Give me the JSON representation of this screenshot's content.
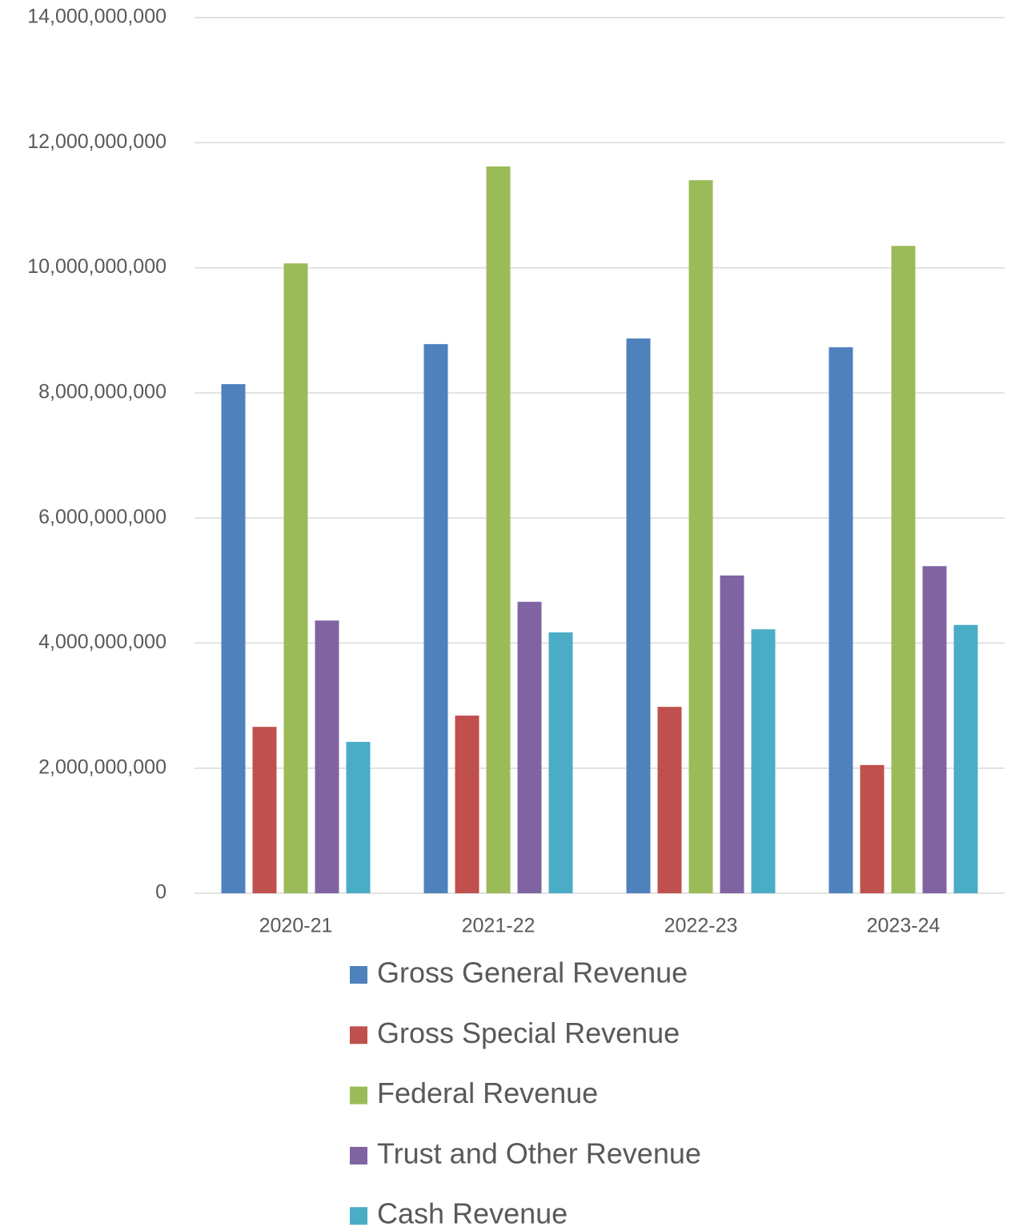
{
  "chart_data": {
    "type": "bar",
    "categories": [
      "2020-21",
      "2021-22",
      "2022-23",
      "2023-24"
    ],
    "series": [
      {
        "name": "Gross General Revenue",
        "color": "#4f81bd",
        "values": [
          8140000000,
          8780000000,
          8870000000,
          8730000000
        ]
      },
      {
        "name": "Gross Special Revenue",
        "color": "#c0504d",
        "values": [
          2660000000,
          2840000000,
          2980000000,
          2050000000
        ]
      },
      {
        "name": "Federal Revenue",
        "color": "#9bbb59",
        "values": [
          10070000000,
          11620000000,
          11400000000,
          10350000000
        ]
      },
      {
        "name": "Trust and Other Revenue",
        "color": "#8064a2",
        "values": [
          4360000000,
          4660000000,
          5080000000,
          5230000000
        ]
      },
      {
        "name": "Cash Revenue",
        "color": "#4bacc6",
        "values": [
          2420000000,
          4170000000,
          4220000000,
          4290000000
        ]
      }
    ],
    "ylim": [
      0,
      14000000000
    ],
    "yticks": [
      0,
      {
        "value": 2000000000,
        "label": "2,000,000,000"
      },
      {
        "value": 4000000000,
        "label": "4,000,000,000"
      },
      {
        "value": 6000000000,
        "label": "6,000,000,000"
      },
      {
        "value": 8000000000,
        "label": "8,000,000,000"
      },
      {
        "value": 10000000000,
        "label": "10,000,000,000"
      },
      {
        "value": 12000000000,
        "label": "12,000,000,000"
      },
      {
        "value": 14000000000,
        "label": "14,000,000,000"
      }
    ],
    "grid": true,
    "legend": "bottom"
  }
}
